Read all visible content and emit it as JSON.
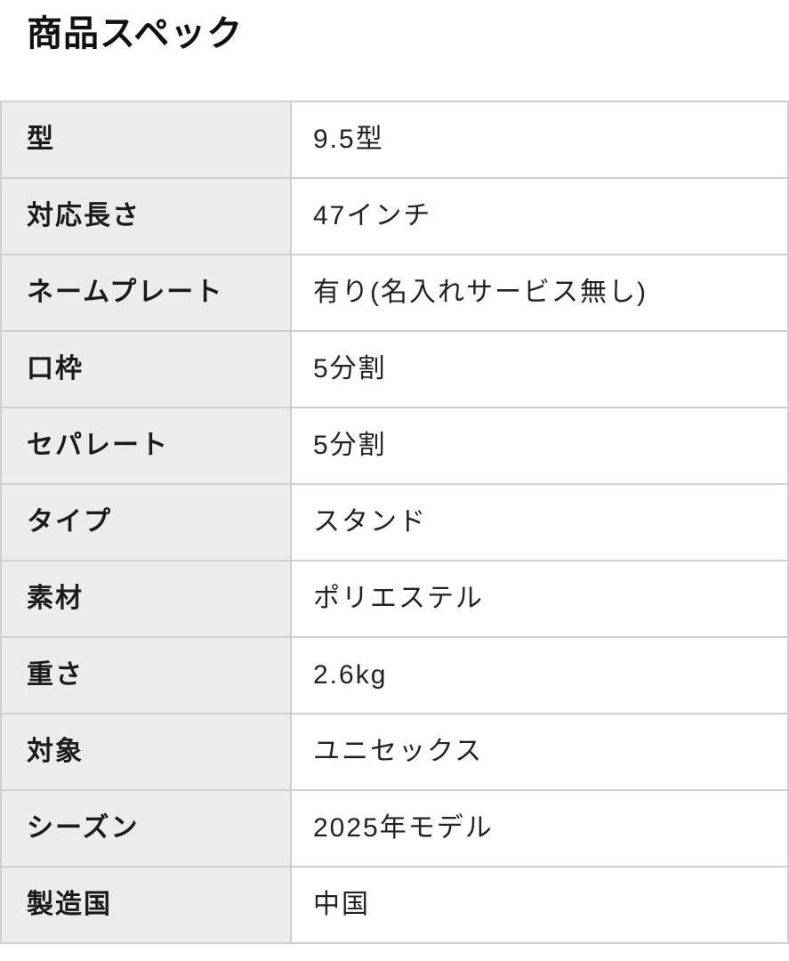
{
  "page_title": "商品スペック",
  "colors": {
    "label_cell_bg": "#ececec",
    "value_cell_bg": "#ffffff",
    "table_border": "#cfcfcf",
    "title_text": "#111111",
    "cell_text": "#222222"
  },
  "spec_table": {
    "rows": [
      {
        "label": "型",
        "value": "9.5型"
      },
      {
        "label": "対応長さ",
        "value": "47インチ"
      },
      {
        "label": "ネームプレート",
        "value": "有り(名入れサービス無し)"
      },
      {
        "label": "口枠",
        "value": "5分割"
      },
      {
        "label": "セパレート",
        "value": "5分割"
      },
      {
        "label": "タイプ",
        "value": "スタンド"
      },
      {
        "label": "素材",
        "value": "ポリエステル"
      },
      {
        "label": "重さ",
        "value": "2.6kg"
      },
      {
        "label": "対象",
        "value": "ユニセックス"
      },
      {
        "label": "シーズン",
        "value": "2025年モデル"
      },
      {
        "label": "製造国",
        "value": "中国"
      }
    ]
  }
}
